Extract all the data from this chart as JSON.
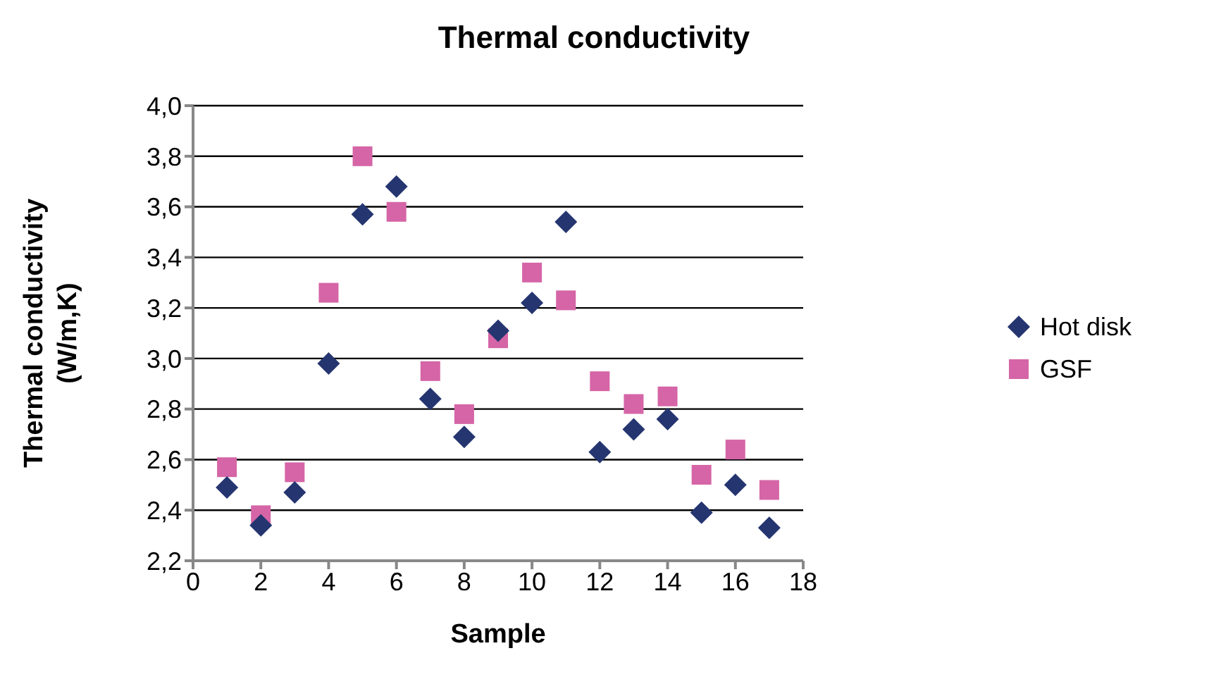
{
  "chart_data": {
    "type": "scatter",
    "title": "Thermal conductivity",
    "xlabel": "Sample",
    "ylabel": "Thermal conductivity (W/m,K)",
    "x": [
      1,
      2,
      3,
      4,
      5,
      6,
      7,
      8,
      9,
      10,
      11,
      12,
      13,
      14,
      15,
      16,
      17
    ],
    "series": [
      {
        "name": "Hot disk",
        "color": "#253570",
        "marker": "diamond",
        "values": [
          2.49,
          2.34,
          2.47,
          2.98,
          3.57,
          3.68,
          2.84,
          2.69,
          3.11,
          3.22,
          3.54,
          2.63,
          2.72,
          2.76,
          2.39,
          2.5,
          2.33
        ]
      },
      {
        "name": "GSF",
        "color": "#d565a6",
        "marker": "square",
        "values": [
          2.57,
          2.38,
          2.55,
          3.26,
          3.8,
          3.58,
          2.95,
          2.78,
          3.08,
          3.34,
          3.23,
          2.91,
          2.82,
          2.85,
          2.54,
          2.64,
          2.48
        ]
      }
    ],
    "xlim": [
      0,
      18
    ],
    "xticks": [
      0,
      2,
      4,
      6,
      8,
      10,
      12,
      14,
      16,
      18
    ],
    "ylim": [
      2.2,
      4.0
    ],
    "yticks": [
      {
        "value": 2.2,
        "label": "2,2"
      },
      {
        "value": 2.4,
        "label": "2,4"
      },
      {
        "value": 2.6,
        "label": "2,6"
      },
      {
        "value": 2.8,
        "label": "2,8"
      },
      {
        "value": 3.0,
        "label": "3,0"
      },
      {
        "value": 3.2,
        "label": "3,2"
      },
      {
        "value": 3.4,
        "label": "3,4"
      },
      {
        "value": 3.6,
        "label": "3,6"
      },
      {
        "value": 3.8,
        "label": "3,8"
      },
      {
        "value": 4.0,
        "label": "4,0"
      }
    ],
    "grid": "y",
    "legend": "right"
  }
}
